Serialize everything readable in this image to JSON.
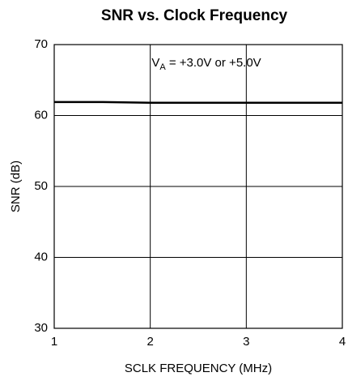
{
  "chart_data": {
    "type": "line",
    "title": "SNR vs. Clock Frequency",
    "x_label": "SCLK FREQUENCY (MHz)",
    "y_label": "SNR (dB)",
    "annotation": [
      "V",
      "A",
      " = +3.0V or +5.0V"
    ],
    "x": [
      1,
      1.5,
      2,
      2.5,
      3,
      3.5,
      4
    ],
    "series": [
      {
        "name": null,
        "color": "#000000",
        "values": [
          61.9,
          61.9,
          61.8,
          61.8,
          61.8,
          61.8,
          61.8
        ]
      }
    ],
    "xlim": [
      1,
      4
    ],
    "xticks": [
      1,
      2,
      3,
      4
    ],
    "ylim": [
      30,
      70
    ],
    "yticks": [
      30,
      40,
      50,
      60,
      70
    ],
    "grid": true
  }
}
